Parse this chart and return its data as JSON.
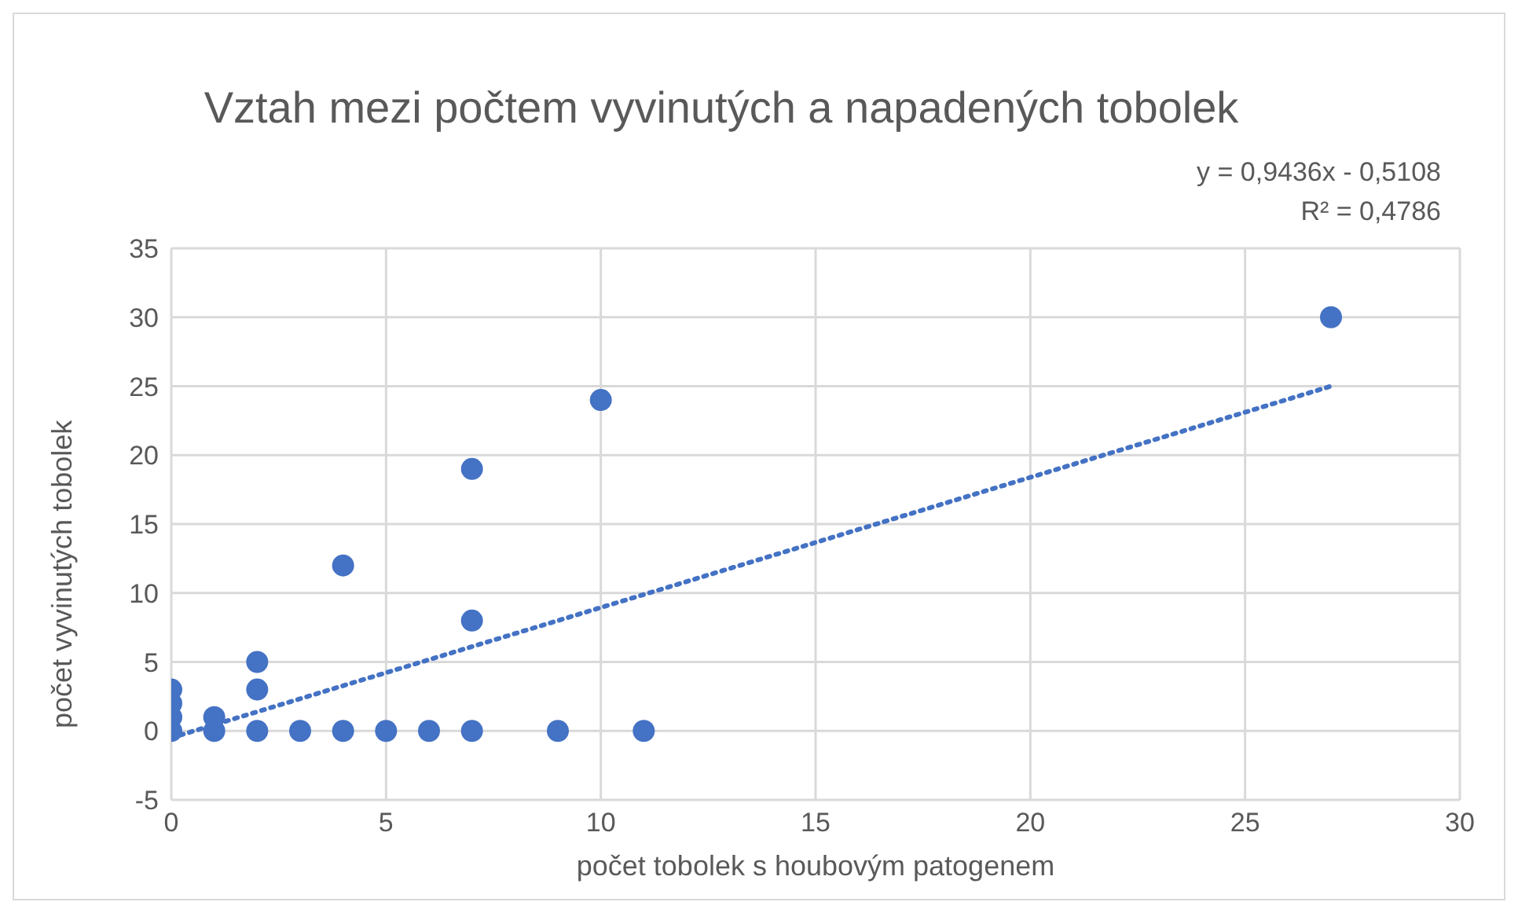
{
  "chart_data": {
    "type": "scatter",
    "title": "Vztah mezi počtem vyvinutých a napadených tobolek",
    "xlabel": "počet tobolek s houbovým patogenem",
    "ylabel": "počet vyvinutých tobolek",
    "annotations": [
      "y = 0,9436x - 0,5108",
      "R² = 0,4786"
    ],
    "series": [
      {
        "color": "#4472c4",
        "marker": "circle",
        "x": [
          0,
          0,
          0,
          0,
          1,
          1,
          2,
          2,
          2,
          3,
          4,
          5,
          6,
          7,
          9,
          11,
          7,
          4,
          7,
          10,
          27
        ],
        "values": [
          0,
          1,
          2,
          3,
          0,
          1,
          0,
          3,
          5,
          0,
          0,
          0,
          0,
          0,
          0,
          0,
          8,
          12,
          19,
          24,
          30
        ]
      },
      {
        "type": "line",
        "color": "#4472c4",
        "marker": "none",
        "line_style": "dotted",
        "x": [
          0,
          27
        ],
        "values": [
          -0.5,
          25.0
        ]
      }
    ],
    "xlim": [
      0,
      30
    ],
    "xticks": [
      0,
      5,
      10,
      15,
      20,
      25,
      30
    ],
    "ylim": [
      -5,
      35
    ],
    "yticks": [
      -5,
      0,
      5,
      10,
      15,
      20,
      25,
      30,
      35
    ],
    "grid": true
  }
}
